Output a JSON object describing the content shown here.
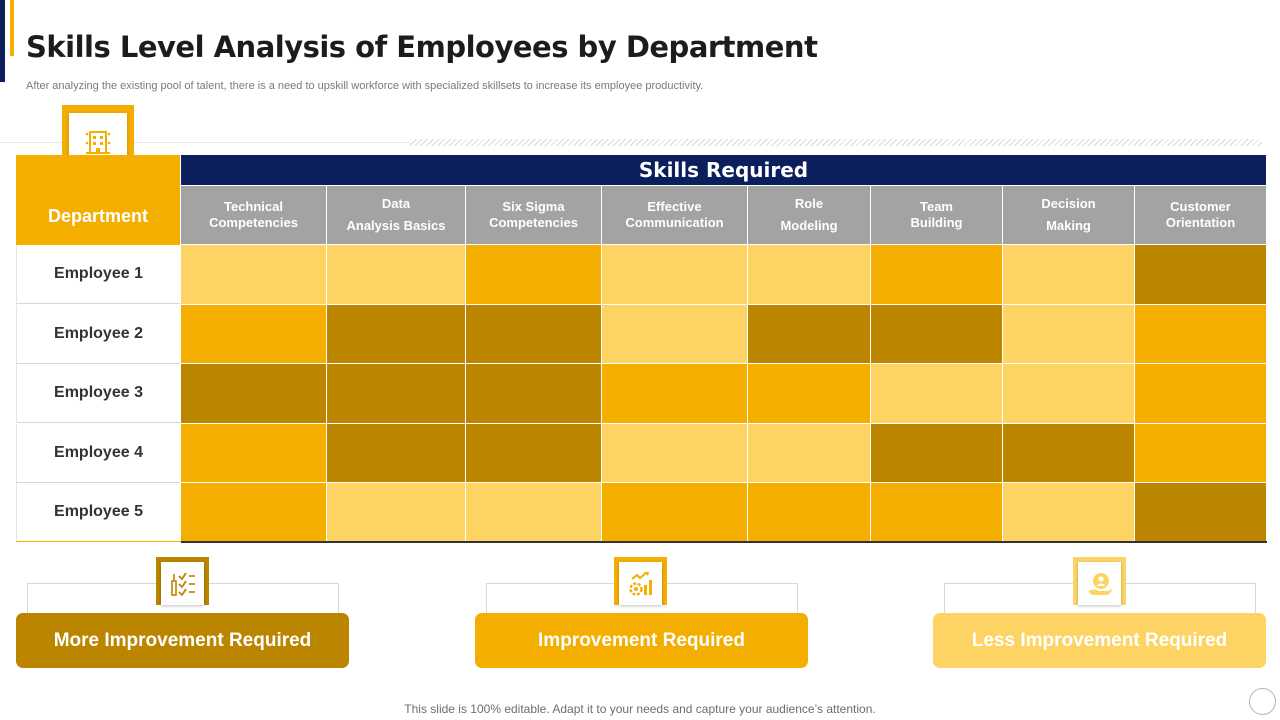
{
  "slide": {
    "title": "Skills Level Analysis of Employees by Department",
    "subtitle": "After  analyzing the existing pool of talent, there is a need to upskill workforce with specialized skillsets to increase its employee productivity.",
    "footer": "This slide is 100% editable. Adapt it to your needs and capture your audience’s attention."
  },
  "table": {
    "department_header": "Department",
    "skills_header": "Skills Required",
    "columns": [
      {
        "line1": "Technical",
        "line2": "Competencies"
      },
      {
        "line1": "Data",
        "line2": "Analysis Basics"
      },
      {
        "line1": "Six Sigma",
        "line2": "Competencies"
      },
      {
        "line1": "Effective",
        "line2": "Communication"
      },
      {
        "line1": "Role",
        "line2": "Modeling"
      },
      {
        "line1": "Team",
        "line2": "Building"
      },
      {
        "line1": "Decision",
        "line2": "Making"
      },
      {
        "line1": "Customer",
        "line2": "Orientation"
      }
    ],
    "rows": [
      {
        "label": "Employee 1",
        "levels": [
          "less",
          "less",
          "improvement",
          "less",
          "less",
          "improvement",
          "less",
          "more"
        ]
      },
      {
        "label": "Employee 2",
        "levels": [
          "improvement",
          "more",
          "more",
          "less",
          "more",
          "more",
          "less",
          "improvement"
        ]
      },
      {
        "label": "Employee 3",
        "levels": [
          "more",
          "more",
          "more",
          "improvement",
          "improvement",
          "less",
          "less",
          "improvement"
        ]
      },
      {
        "label": "Employee 4",
        "levels": [
          "improvement",
          "more",
          "more",
          "less",
          "less",
          "more",
          "more",
          "improvement"
        ]
      },
      {
        "label": "Employee 5",
        "levels": [
          "improvement",
          "less",
          "less",
          "improvement",
          "improvement",
          "improvement",
          "less",
          "more"
        ]
      }
    ]
  },
  "legend": {
    "more": {
      "label": "More Improvement Required",
      "color": "#bb8500",
      "icon": "checklist-icon"
    },
    "improvement": {
      "label": "Improvement Required",
      "color": "#f4ae00",
      "icon": "growth-gear-icon"
    },
    "less": {
      "label": "Less Improvement Required",
      "color": "#fdd464",
      "icon": "person-hand-icon"
    }
  },
  "colors": {
    "navy": "#0b1f5c",
    "gold": "#f4ae00",
    "header_gray": "#a3a3a3"
  }
}
